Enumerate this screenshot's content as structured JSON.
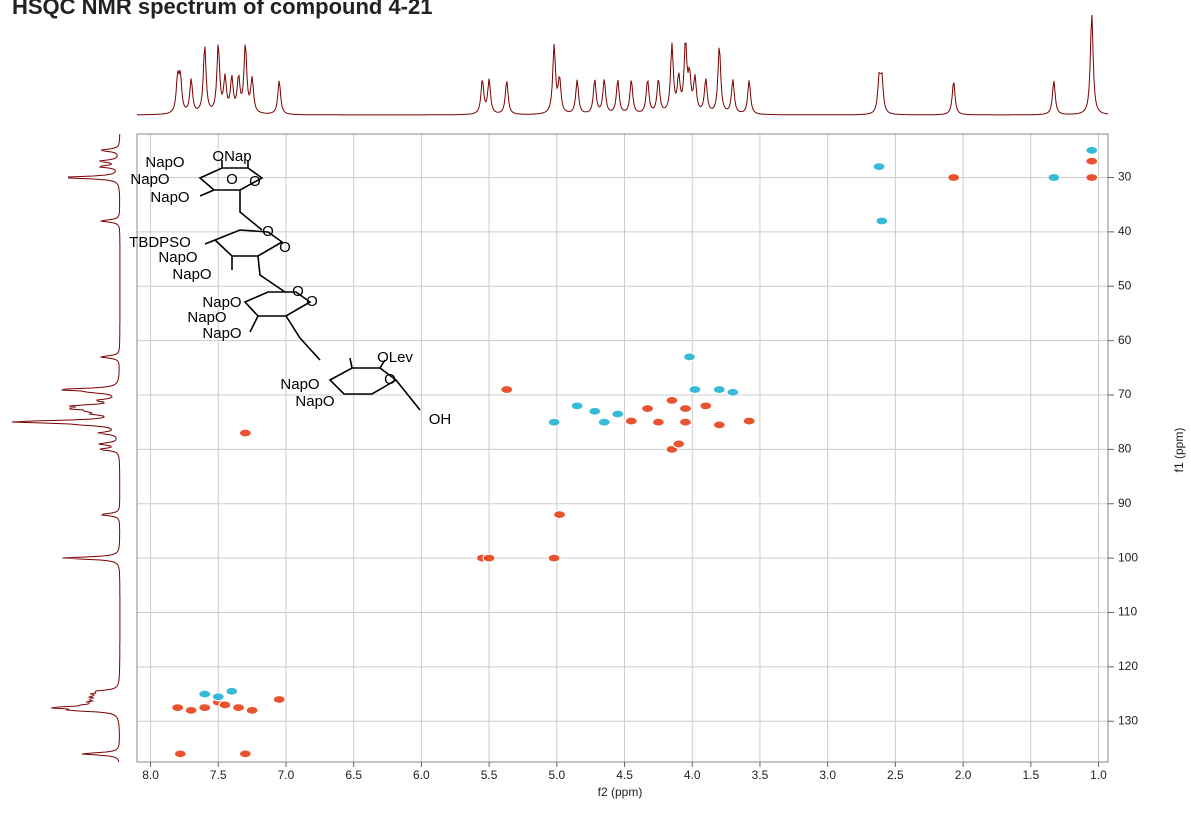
{
  "chart_data": {
    "type": "scatter",
    "title": "HSQC NMR spectrum of compound 4-21",
    "xlabel": "f2 (ppm)",
    "ylabel": "f1 (ppm)",
    "xlim": [
      8.1,
      0.93
    ],
    "ylim": [
      22,
      137.5
    ],
    "xticks": [
      {
        "value": 8,
        "label": "8.0"
      },
      7.5,
      {
        "value": 7,
        "label": "7.0"
      },
      6.5,
      {
        "value": 6,
        "label": "6.0"
      },
      5.5,
      {
        "value": 5,
        "label": "5.0"
      },
      4.5,
      {
        "value": 4,
        "label": "4.0"
      },
      3.5,
      {
        "value": 3,
        "label": "3.0"
      },
      2.5,
      {
        "value": 2,
        "label": "2.0"
      },
      1.5,
      {
        "value": 1,
        "label": "1.0"
      }
    ],
    "yticks": [
      30,
      40,
      50,
      60,
      70,
      80,
      90,
      100,
      110,
      120,
      130
    ],
    "grid": true,
    "series": [
      {
        "color": "#e8401a",
        "x": [
          7.8,
          7.7,
          7.6,
          7.5,
          7.45,
          7.35,
          7.25,
          7.05,
          7.78,
          7.3,
          7.3,
          5.37,
          5.55,
          5.5,
          5.02,
          4.98,
          4.45,
          4.33,
          4.25,
          4.15,
          4.1,
          4.15,
          4.05,
          4.05,
          3.9,
          3.8,
          3.58,
          2.07,
          1.05,
          1.05
        ],
        "values": [
          127.5,
          128,
          127.5,
          126.5,
          127,
          127.5,
          128,
          126,
          136,
          136,
          77,
          69,
          100,
          100,
          100,
          92,
          74.8,
          72.5,
          75,
          80,
          79,
          71,
          75,
          72.5,
          72,
          75.5,
          74.8,
          30,
          27,
          30
        ]
      },
      {
        "color": "#22b4d4",
        "x": [
          7.6,
          7.5,
          7.4,
          2.62,
          2.6,
          1.33,
          5.02,
          4.85,
          4.72,
          4.65,
          4.55,
          4.02,
          3.98,
          3.8,
          3.7,
          1.05
        ],
        "values": [
          125,
          125.5,
          124.5,
          28,
          38,
          30,
          75,
          72,
          73,
          75,
          73.5,
          63,
          69,
          69,
          69.5,
          25
        ]
      }
    ],
    "annotations": [
      "NapO",
      "ONap",
      "NapO",
      "O",
      "NapO",
      "O",
      "TBDPSO",
      "NapO",
      "NapO",
      "O",
      "O",
      "NapO",
      "NapO",
      "NapO",
      "O",
      "O",
      "OLev",
      "NapO",
      "NapO",
      "O",
      "OH"
    ]
  }
}
